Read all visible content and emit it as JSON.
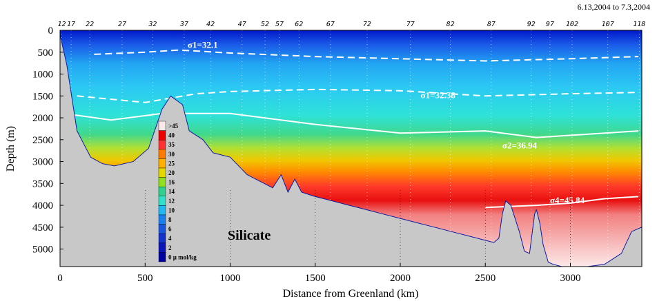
{
  "chart_data": {
    "type": "heatmap",
    "title": "",
    "date_range": "6.13,2004 to 7.3,2004",
    "panel_label": "Silicate",
    "xlabel": "Distance from Greenland (km)",
    "ylabel": "Depth (m)",
    "xlim": [
      0,
      3420
    ],
    "ylim": [
      5400,
      0
    ],
    "x_ticks": [
      0,
      500,
      1000,
      1500,
      2000,
      2500,
      3000
    ],
    "y_ticks": [
      0,
      500,
      1000,
      1500,
      2000,
      2500,
      3000,
      3500,
      4000,
      4500,
      5000
    ],
    "stations": [
      {
        "label": "12",
        "x": 10
      },
      {
        "label": "17",
        "x": 65
      },
      {
        "label": "22",
        "x": 175
      },
      {
        "label": "27",
        "x": 365
      },
      {
        "label": "32",
        "x": 545
      },
      {
        "label": "37",
        "x": 730
      },
      {
        "label": "42",
        "x": 885
      },
      {
        "label": "47",
        "x": 1070
      },
      {
        "label": "52",
        "x": 1205
      },
      {
        "label": "57",
        "x": 1290
      },
      {
        "label": "62",
        "x": 1405
      },
      {
        "label": "67",
        "x": 1590
      },
      {
        "label": "72",
        "x": 1805
      },
      {
        "label": "77",
        "x": 2060
      },
      {
        "label": "82",
        "x": 2295
      },
      {
        "label": "87",
        "x": 2535
      },
      {
        "label": "92",
        "x": 2770
      },
      {
        "label": "97",
        "x": 2880
      },
      {
        "label": "102",
        "x": 3010
      },
      {
        "label": "107",
        "x": 3220
      },
      {
        "label": "118",
        "x": 3405
      }
    ],
    "colorbar": {
      "levels": [
        ">45",
        "40",
        "35",
        "30",
        "25",
        "20",
        "16",
        "14",
        "12",
        "10",
        "8",
        "6",
        "4",
        "2",
        "0 µ mol/kg"
      ],
      "colors": [
        "#fbe8e8",
        "#ee0000",
        "#ff3333",
        "#ff7a00",
        "#ffb000",
        "#e4d800",
        "#90e020",
        "#30d090",
        "#30e0c8",
        "#20b8f0",
        "#1a80ee",
        "#1a55dd",
        "#1433cc",
        "#0a14b8",
        "#0000a0"
      ]
    },
    "isopycnal_labels": [
      {
        "label": "σ1=32.1",
        "x": 750,
        "depth": 400
      },
      {
        "label": "σ1=32.38",
        "x": 2120,
        "depth": 1550
      },
      {
        "label": "σ2=36.94",
        "x": 2600,
        "depth": 2700
      },
      {
        "label": "σ4=45.84",
        "x": 2880,
        "depth": 3950
      }
    ],
    "isopycnals": [
      {
        "name": "σ1=32.1",
        "x": [
          200,
          500,
          700,
          1000,
          1500,
          2000,
          2500,
          3000,
          3400
        ],
        "depth": [
          550,
          500,
          450,
          520,
          600,
          650,
          700,
          650,
          600
        ]
      },
      {
        "name": "σ1=32.38",
        "x": [
          100,
          500,
          800,
          1000,
          1500,
          2000,
          2500,
          3000,
          3400
        ],
        "depth": [
          1500,
          1650,
          1450,
          1400,
          1350,
          1380,
          1500,
          1450,
          1420
        ]
      },
      {
        "name": "σ2=36.94",
        "x": [
          20,
          300,
          600,
          1000,
          1500,
          2000,
          2500,
          2800,
          3400
        ],
        "depth": [
          1900,
          2050,
          1900,
          1900,
          2150,
          2350,
          2300,
          2450,
          2300
        ]
      },
      {
        "name": "σ4=45.84",
        "x": [
          2500,
          2800,
          3000,
          3200,
          3400
        ],
        "depth": [
          4050,
          4000,
          3950,
          3850,
          3800
        ]
      }
    ],
    "bathymetry": {
      "x": [
        0,
        40,
        100,
        180,
        250,
        320,
        430,
        520,
        600,
        650,
        720,
        760,
        840,
        900,
        1000,
        1100,
        1200,
        1250,
        1300,
        1340,
        1380,
        1420,
        1500,
        1600,
        1700,
        1800,
        1900,
        2000,
        2100,
        2200,
        2300,
        2400,
        2500,
        2550,
        2580,
        2600,
        2620,
        2650,
        2700,
        2730,
        2760,
        2790,
        2800,
        2820,
        2840,
        2870,
        2900,
        2950,
        3000,
        3100,
        3200,
        3300,
        3360,
        3420
      ],
      "depth": [
        100,
        800,
        2300,
        2900,
        3050,
        3100,
        3000,
        2700,
        1800,
        1500,
        1700,
        2300,
        2500,
        2800,
        2900,
        3300,
        3500,
        3600,
        3300,
        3700,
        3400,
        3700,
        3800,
        3900,
        4000,
        4100,
        4200,
        4300,
        4400,
        4500,
        4600,
        4700,
        4800,
        4850,
        4750,
        4200,
        3900,
        4000,
        4600,
        5050,
        5100,
        4200,
        4100,
        4400,
        4900,
        5300,
        5350,
        5400,
        5400,
        5400,
        5350,
        5100,
        4600,
        4500
      ]
    }
  }
}
